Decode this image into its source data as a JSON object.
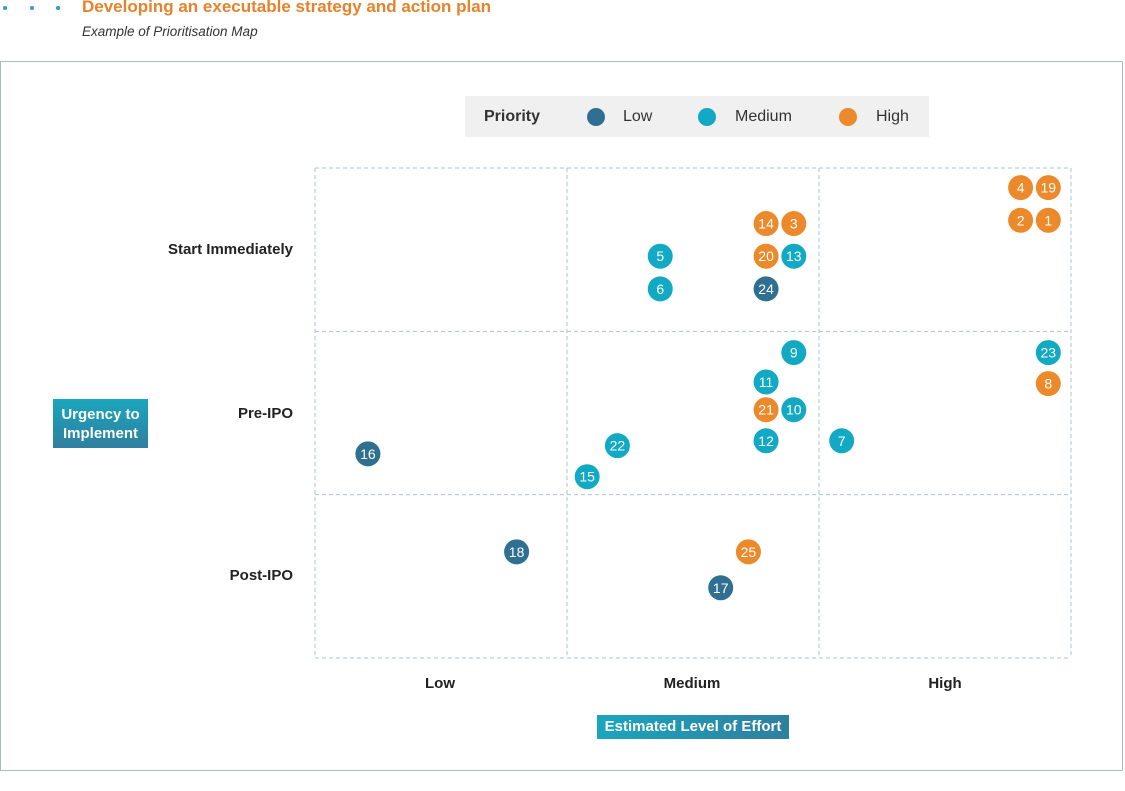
{
  "header": {
    "title": "Developing an executable strategy and action plan",
    "subtitle": "Example of Prioritisation Map"
  },
  "colors": {
    "low": "#2f6f92",
    "medium": "#11a9c4",
    "high": "#ec8a2b",
    "grid": "#a9c3cf",
    "accent": "#e8822a"
  },
  "chart_data": {
    "type": "scatter",
    "title": "Example of Prioritisation Map",
    "xlabel": "Estimated Level of Effort",
    "ylabel": "Urgency to Implement",
    "x_categories": [
      "Low",
      "Medium",
      "High"
    ],
    "y_categories": [
      "Post-IPO",
      "Pre-IPO",
      "Start Immediately"
    ],
    "xlim": [
      0,
      3
    ],
    "ylim": [
      0,
      3
    ],
    "grid": true,
    "legend": {
      "title": "Priority",
      "position": "top-center",
      "entries": [
        {
          "key": "low",
          "label": "Low"
        },
        {
          "key": "medium",
          "label": "Medium"
        },
        {
          "key": "high",
          "label": "High"
        }
      ]
    },
    "points": [
      {
        "id": "4",
        "x": 2.8,
        "y": 2.88,
        "priority": "high"
      },
      {
        "id": "19",
        "x": 2.91,
        "y": 2.88,
        "priority": "high"
      },
      {
        "id": "2",
        "x": 2.8,
        "y": 2.68,
        "priority": "high"
      },
      {
        "id": "1",
        "x": 2.91,
        "y": 2.68,
        "priority": "high"
      },
      {
        "id": "14",
        "x": 1.79,
        "y": 2.66,
        "priority": "high"
      },
      {
        "id": "3",
        "x": 1.9,
        "y": 2.66,
        "priority": "high"
      },
      {
        "id": "5",
        "x": 1.37,
        "y": 2.46,
        "priority": "medium"
      },
      {
        "id": "20",
        "x": 1.79,
        "y": 2.46,
        "priority": "high"
      },
      {
        "id": "13",
        "x": 1.9,
        "y": 2.46,
        "priority": "medium"
      },
      {
        "id": "6",
        "x": 1.37,
        "y": 2.26,
        "priority": "medium"
      },
      {
        "id": "24",
        "x": 1.79,
        "y": 2.26,
        "priority": "low"
      },
      {
        "id": "9",
        "x": 1.9,
        "y": 1.87,
        "priority": "medium"
      },
      {
        "id": "23",
        "x": 2.91,
        "y": 1.87,
        "priority": "medium"
      },
      {
        "id": "11",
        "x": 1.79,
        "y": 1.69,
        "priority": "medium"
      },
      {
        "id": "8",
        "x": 2.91,
        "y": 1.68,
        "priority": "high"
      },
      {
        "id": "21",
        "x": 1.79,
        "y": 1.52,
        "priority": "high"
      },
      {
        "id": "10",
        "x": 1.9,
        "y": 1.52,
        "priority": "medium"
      },
      {
        "id": "12",
        "x": 1.79,
        "y": 1.33,
        "priority": "medium"
      },
      {
        "id": "7",
        "x": 2.09,
        "y": 1.33,
        "priority": "medium"
      },
      {
        "id": "22",
        "x": 1.2,
        "y": 1.3,
        "priority": "medium"
      },
      {
        "id": "16",
        "x": 0.21,
        "y": 1.25,
        "priority": "low"
      },
      {
        "id": "15",
        "x": 1.08,
        "y": 1.11,
        "priority": "medium"
      },
      {
        "id": "18",
        "x": 0.8,
        "y": 0.65,
        "priority": "low"
      },
      {
        "id": "25",
        "x": 1.72,
        "y": 0.65,
        "priority": "high"
      },
      {
        "id": "17",
        "x": 1.61,
        "y": 0.43,
        "priority": "low"
      }
    ]
  }
}
